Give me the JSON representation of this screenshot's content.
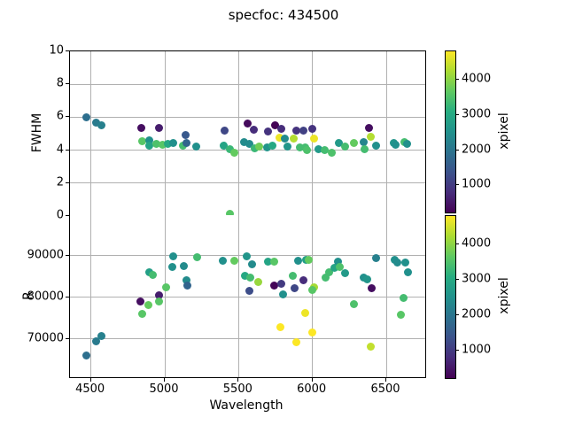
{
  "title": "specfoc: 434500",
  "colors": {
    "viridis_stops": [
      "#440154",
      "#472d7b",
      "#3b528b",
      "#2c728e",
      "#21918c",
      "#27ad81",
      "#5ec962",
      "#aadc32",
      "#fde725"
    ],
    "grid": "#b0b0b0",
    "spine": "#000000"
  },
  "colormap": {
    "vmin": 230,
    "vmax": 4810,
    "ticks": [
      1000,
      2000,
      3000,
      4000
    ],
    "label": "xpixel"
  },
  "chart_data": [
    {
      "type": "scatter",
      "ylabel": "FWHM",
      "xlabel": "Wavelength",
      "xlim": [
        4358,
        6764
      ],
      "ylim": [
        0,
        10
      ],
      "xticks": [
        4500,
        5000,
        5500,
        6000,
        6500
      ],
      "yticks": [
        0,
        2,
        4,
        6,
        8,
        10
      ],
      "show_xticklabels": false,
      "color_by": "xpixel",
      "legend": "colorbar-right",
      "grid": true,
      "points": [
        [
          4466,
          6.02,
          1900
        ],
        [
          4537,
          5.67,
          2100
        ],
        [
          4573,
          5.52,
          2200
        ],
        [
          4840,
          5.35,
          400
        ],
        [
          4958,
          5.35,
          600
        ],
        [
          4845,
          4.56,
          3600
        ],
        [
          4893,
          4.62,
          2500
        ],
        [
          4896,
          4.27,
          2900
        ],
        [
          4940,
          4.36,
          3500
        ],
        [
          4985,
          4.31,
          3600
        ],
        [
          5020,
          4.4,
          3000
        ],
        [
          5056,
          4.44,
          2500
        ],
        [
          5120,
          4.28,
          3400
        ],
        [
          5140,
          4.9,
          1500
        ],
        [
          5145,
          4.42,
          1700
        ],
        [
          5212,
          4.23,
          2500
        ],
        [
          5400,
          4.3,
          2900
        ],
        [
          5440,
          4.05,
          3300
        ],
        [
          5470,
          3.86,
          3700
        ],
        [
          5438,
          0.15,
          3600
        ],
        [
          5406,
          5.18,
          1200
        ],
        [
          5534,
          4.5,
          2400
        ],
        [
          5560,
          5.63,
          350
        ],
        [
          5572,
          4.37,
          2400
        ],
        [
          5600,
          5.23,
          800
        ],
        [
          5608,
          4.1,
          3300
        ],
        [
          5640,
          4.2,
          3800
        ],
        [
          5690,
          4.15,
          2600
        ],
        [
          5700,
          5.12,
          900
        ],
        [
          5730,
          4.28,
          3000
        ],
        [
          5745,
          5.5,
          250
        ],
        [
          5774,
          4.78,
          4700
        ],
        [
          5790,
          5.27,
          800
        ],
        [
          5815,
          4.73,
          2400
        ],
        [
          5830,
          4.23,
          2600
        ],
        [
          5870,
          4.68,
          4300
        ],
        [
          5890,
          5.2,
          900
        ],
        [
          5912,
          4.19,
          3400
        ],
        [
          5940,
          5.2,
          1100
        ],
        [
          5948,
          4.15,
          3400
        ],
        [
          5962,
          4.0,
          3500
        ],
        [
          6000,
          5.27,
          900
        ],
        [
          6010,
          4.68,
          4700
        ],
        [
          6042,
          4.05,
          2700
        ],
        [
          6080,
          4.0,
          3400
        ],
        [
          6130,
          3.82,
          3500
        ],
        [
          6180,
          4.45,
          2700
        ],
        [
          6220,
          4.2,
          3400
        ],
        [
          6280,
          4.45,
          3700
        ],
        [
          6348,
          4.5,
          2300
        ],
        [
          6352,
          4.05,
          3400
        ],
        [
          6380,
          5.35,
          400
        ],
        [
          6392,
          4.8,
          4300
        ],
        [
          6430,
          4.3,
          2500
        ],
        [
          6552,
          4.45,
          2600
        ],
        [
          6562,
          4.35,
          2500
        ],
        [
          6620,
          4.5,
          3400
        ],
        [
          6642,
          4.4,
          2500
        ]
      ]
    },
    {
      "type": "scatter",
      "ylabel": "R",
      "xlabel": "Wavelength",
      "xlim": [
        4358,
        6764
      ],
      "ylim": [
        60700,
        99640
      ],
      "xticks": [
        4500,
        5000,
        5500,
        6000,
        6500
      ],
      "yticks": [
        70000,
        80000,
        90000
      ],
      "show_xticklabels": true,
      "color_by": "xpixel",
      "legend": "colorbar-right",
      "grid": true,
      "points": [
        [
          4466,
          66000,
          1900
        ],
        [
          4537,
          69300,
          2100
        ],
        [
          4573,
          70500,
          2200
        ],
        [
          4836,
          78900,
          400
        ],
        [
          4845,
          76000,
          3600
        ],
        [
          4890,
          78100,
          3700
        ],
        [
          4895,
          86000,
          2800
        ],
        [
          4920,
          85300,
          3400
        ],
        [
          4958,
          80400,
          600
        ],
        [
          4962,
          78800,
          3600
        ],
        [
          5010,
          82400,
          3600
        ],
        [
          5058,
          89800,
          2500
        ],
        [
          5050,
          87100,
          2500
        ],
        [
          5130,
          87500,
          2400
        ],
        [
          5148,
          84100,
          2400
        ],
        [
          5152,
          82800,
          1700
        ],
        [
          5220,
          89600,
          3400
        ],
        [
          5392,
          88600,
          2500
        ],
        [
          5468,
          88600,
          3700
        ],
        [
          5552,
          89750,
          2600
        ],
        [
          5540,
          85000,
          3000
        ],
        [
          5578,
          84700,
          3400
        ],
        [
          5570,
          81500,
          1300
        ],
        [
          5592,
          87800,
          2400
        ],
        [
          5630,
          83600,
          4100
        ],
        [
          5698,
          88400,
          2900
        ],
        [
          5738,
          88500,
          3600
        ],
        [
          5740,
          82700,
          300
        ],
        [
          5788,
          83100,
          1000
        ],
        [
          5800,
          80500,
          2500
        ],
        [
          5780,
          72800,
          4800
        ],
        [
          5868,
          85000,
          3400
        ],
        [
          5880,
          82100,
          1200
        ],
        [
          5888,
          69100,
          4800
        ],
        [
          5900,
          88600,
          2500
        ],
        [
          5938,
          83900,
          800
        ],
        [
          5950,
          76200,
          4700
        ],
        [
          5955,
          89000,
          2800
        ],
        [
          5975,
          88900,
          3700
        ],
        [
          6000,
          71400,
          4800
        ],
        [
          6008,
          82200,
          4200
        ],
        [
          5998,
          81600,
          3600
        ],
        [
          6090,
          84600,
          3400
        ],
        [
          6110,
          86000,
          3400
        ],
        [
          6148,
          87000,
          2900
        ],
        [
          6170,
          88550,
          2500
        ],
        [
          6182,
          87100,
          3500
        ],
        [
          6220,
          85700,
          2700
        ],
        [
          6280,
          78300,
          3500
        ],
        [
          6348,
          84600,
          2500
        ],
        [
          6368,
          84200,
          2600
        ],
        [
          6400,
          82100,
          400
        ],
        [
          6396,
          68000,
          4400
        ],
        [
          6428,
          89300,
          2200
        ],
        [
          6558,
          88800,
          2500
        ],
        [
          6575,
          88200,
          2400
        ],
        [
          6628,
          88250,
          2500
        ],
        [
          6648,
          86000,
          2500
        ],
        [
          6618,
          79700,
          3400
        ],
        [
          6600,
          75600,
          3600
        ]
      ]
    }
  ]
}
